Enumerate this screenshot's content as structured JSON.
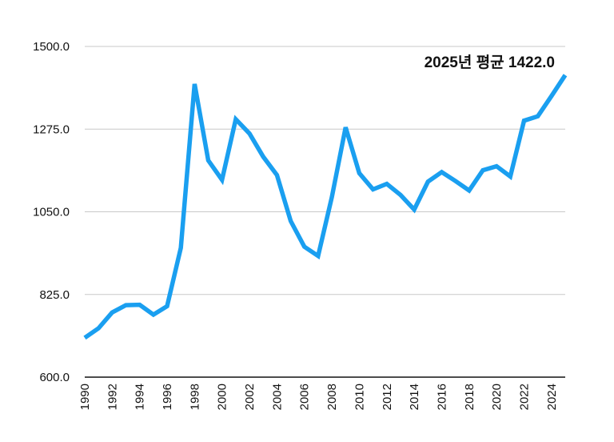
{
  "chart_data": {
    "type": "line",
    "title": "",
    "xlabel": "",
    "ylabel": "",
    "ylim": [
      600,
      1500
    ],
    "yticks": [
      "600.0",
      "825.0",
      "1050.0",
      "1275.0",
      "1500.0"
    ],
    "ytick_values": [
      600,
      825,
      1050,
      1275,
      1500
    ],
    "xticks": [
      "1990",
      "1992",
      "1994",
      "1996",
      "1998",
      "2000",
      "2002",
      "2004",
      "2006",
      "2008",
      "2010",
      "2012",
      "2014",
      "2016",
      "2018",
      "2020",
      "2022",
      "2024"
    ],
    "x": [
      1990,
      1991,
      1992,
      1993,
      1994,
      1995,
      1996,
      1997,
      1998,
      1999,
      2000,
      2001,
      2002,
      2003,
      2004,
      2005,
      2006,
      2007,
      2008,
      2009,
      2010,
      2011,
      2012,
      2013,
      2014,
      2015,
      2016,
      2017,
      2018,
      2019,
      2020,
      2021,
      2022,
      2023,
      2024,
      2025
    ],
    "series": [
      {
        "name": "평균",
        "color": "#1a9ff0",
        "values": [
          707,
          733,
          776,
          796,
          797,
          770,
          793,
          952,
          1398,
          1190,
          1137,
          1302,
          1263,
          1200,
          1150,
          1025,
          955,
          930,
          1090,
          1280,
          1155,
          1111,
          1126,
          1096,
          1056,
          1132,
          1158,
          1134,
          1108,
          1163,
          1174,
          1146,
          1298,
          1310,
          1365,
          1422
        ]
      }
    ],
    "annotation": "2025년 평균 1422.0",
    "grid": true,
    "colors": {
      "line": "#1a9ff0",
      "grid": "#c8c8c8",
      "axis": "#111111"
    }
  }
}
